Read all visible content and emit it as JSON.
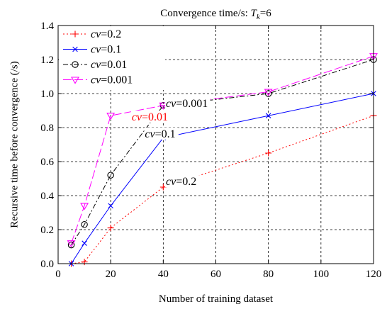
{
  "chart_data": {
    "type": "line",
    "title": "Convergence time/s: T_k=6",
    "title_parts": {
      "prefix": "Convergence time/s: ",
      "var": "T",
      "sub": "k",
      "suffix": "=6"
    },
    "xlabel": "Number of training dataset",
    "ylabel": "Recursive time before convergence (/s)",
    "xlim": [
      0,
      120
    ],
    "ylim": [
      0,
      1.4
    ],
    "x_ticks": [
      0,
      20,
      40,
      60,
      80,
      100,
      120
    ],
    "x_tick_labels": [
      "0",
      "20",
      "40",
      "60",
      "80",
      "100",
      "120"
    ],
    "y_ticks": [
      0,
      0.2,
      0.4,
      0.6,
      0.8,
      1.0,
      1.2,
      1.4
    ],
    "y_tick_labels": [
      "0.0",
      "0.2",
      "0.4",
      "0.6",
      "0.8",
      "1.0",
      "1.2",
      "1.4"
    ],
    "grid": true,
    "legend_position": "top-left",
    "series": [
      {
        "name": "cv=0.2",
        "var": "cv",
        "val": "=0.2",
        "color": "#ff0000",
        "dash": "2,3",
        "marker": "plus",
        "x": [
          5,
          10,
          20,
          40,
          80,
          120
        ],
        "y": [
          0.0,
          0.01,
          0.21,
          0.45,
          0.65,
          0.87
        ]
      },
      {
        "name": "cv=0.1",
        "var": "cv",
        "val": "=0.1",
        "color": "#0000ff",
        "dash": "",
        "marker": "x",
        "x": [
          5,
          10,
          20,
          40,
          80,
          120
        ],
        "y": [
          0.0,
          0.12,
          0.34,
          0.74,
          0.87,
          1.0
        ]
      },
      {
        "name": "cv=0.01",
        "var": "cv",
        "val": "=0.01",
        "color": "#000000",
        "dash": "7,3,2,3",
        "marker": "circle",
        "x": [
          5,
          10,
          20,
          40,
          80,
          120
        ],
        "y": [
          0.11,
          0.23,
          0.52,
          0.93,
          1.0,
          1.2
        ]
      },
      {
        "name": "cv=0.001",
        "var": "cv",
        "val": "=0.001",
        "color": "#ff00ff",
        "dash": "12,4",
        "marker": "triangle-down",
        "x": [
          5,
          10,
          20,
          40,
          80,
          120
        ],
        "y": [
          0.12,
          0.34,
          0.87,
          0.93,
          1.01,
          1.22
        ]
      }
    ],
    "annotations": [
      {
        "var": "cv",
        "val": "=0.001",
        "color": "#000000",
        "x": 41,
        "y": 0.93
      },
      {
        "var": "cv",
        "val": "=0.01",
        "color": "#ff0000",
        "x": 28,
        "y": 0.85
      },
      {
        "var": "cv",
        "val": "=0.1",
        "color": "#000000",
        "x": 33,
        "y": 0.75
      },
      {
        "var": "cv",
        "val": "=0.2",
        "color": "#000000",
        "x": 41,
        "y": 0.47
      }
    ]
  }
}
